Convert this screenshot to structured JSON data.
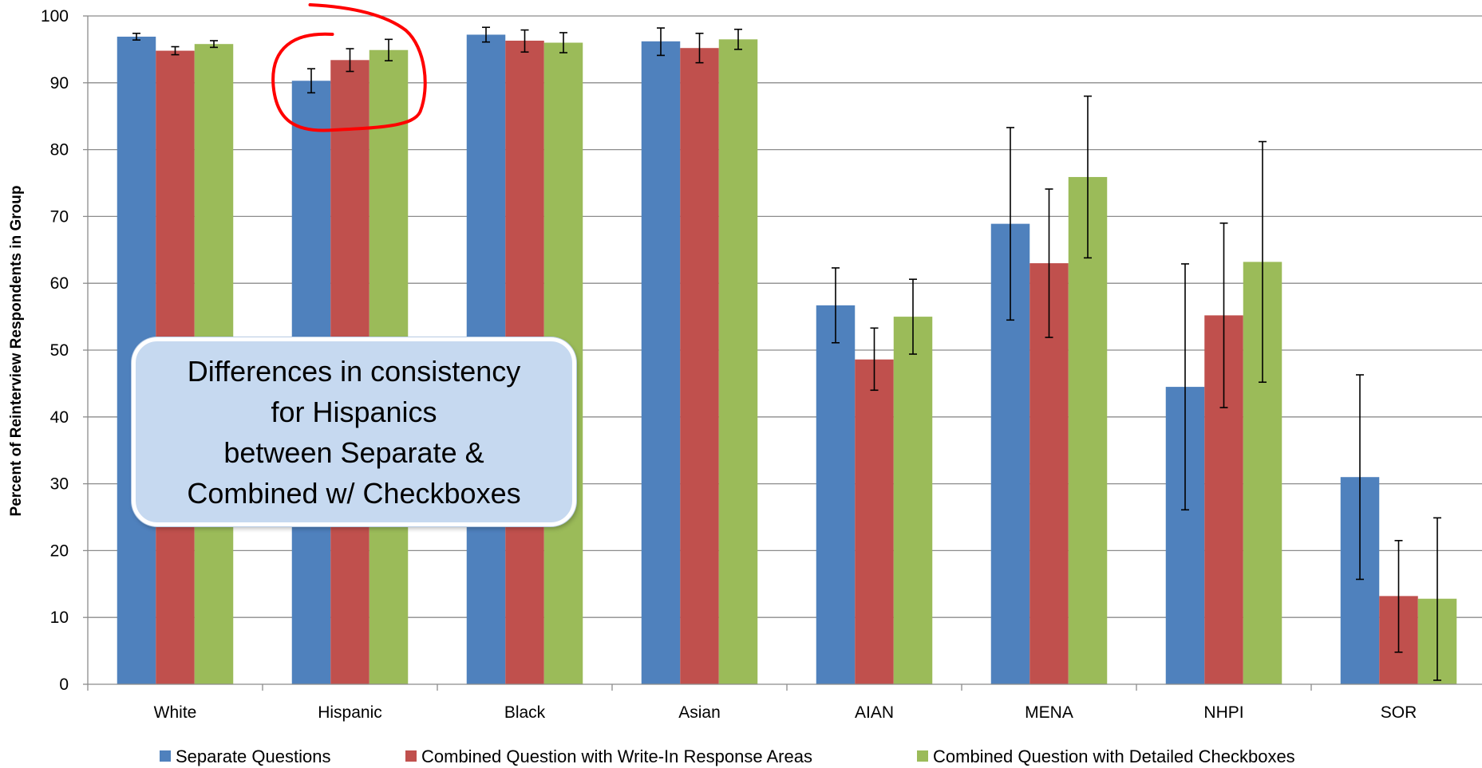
{
  "chart_data": {
    "type": "bar",
    "ylabel": "Percent of Reinterview Respondents in Group",
    "ylim": [
      0,
      100
    ],
    "yticks": [
      "0",
      "10",
      "20",
      "30",
      "40",
      "50",
      "60",
      "70",
      "80",
      "90",
      "100"
    ],
    "grid": true,
    "legend_position": "bottom",
    "categories": [
      "White",
      "Hispanic",
      "Black",
      "Asian",
      "AIAN",
      "MENA",
      "NHPI",
      "SOR"
    ],
    "series": [
      {
        "name": "Separate Questions",
        "color": "#4f81bd",
        "values": [
          96.9,
          90.3,
          97.2,
          96.2,
          56.7,
          68.9,
          44.5,
          31.0
        ],
        "error_low": [
          96.4,
          88.5,
          96.1,
          94.1,
          51.1,
          54.5,
          26.1,
          15.7
        ],
        "error_high": [
          97.4,
          92.1,
          98.3,
          98.2,
          62.3,
          83.3,
          62.9,
          46.3
        ]
      },
      {
        "name": "Combined Question with Write-In Response Areas",
        "color": "#c0504d",
        "values": [
          94.8,
          93.4,
          96.3,
          95.2,
          48.6,
          63.0,
          55.2,
          13.2
        ],
        "error_low": [
          94.2,
          91.7,
          94.6,
          93.0,
          44.0,
          51.9,
          41.4,
          4.8
        ],
        "error_high": [
          95.4,
          95.1,
          97.9,
          97.4,
          53.3,
          74.1,
          69.0,
          21.5
        ]
      },
      {
        "name": "Combined Question with Detailed Checkboxes",
        "color": "#9bbb59",
        "values": [
          95.8,
          94.9,
          96.0,
          96.5,
          55.0,
          75.9,
          63.2,
          12.8
        ],
        "error_low": [
          95.3,
          93.3,
          94.5,
          95.0,
          49.4,
          63.8,
          45.2,
          0.6
        ],
        "error_high": [
          96.3,
          96.5,
          97.5,
          98.0,
          60.6,
          88.0,
          81.2,
          24.9
        ]
      }
    ],
    "annotation": {
      "lines": [
        "Differences in consistency",
        "for Hispanics",
        "between Separate &",
        "Combined w/ Checkboxes"
      ],
      "highlight_category": "Hispanic",
      "highlight_color": "#ff0000"
    }
  }
}
